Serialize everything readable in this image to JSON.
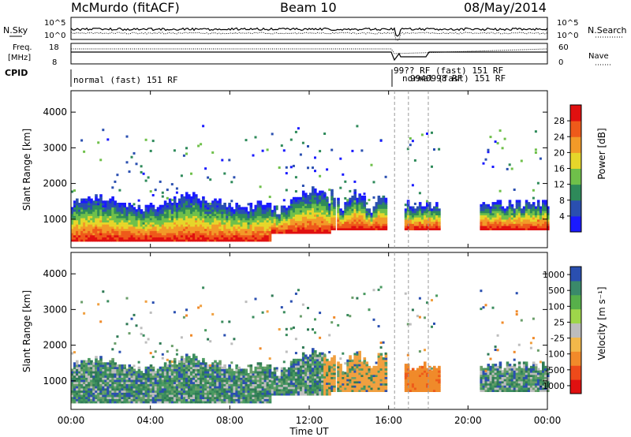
{
  "header": {
    "title": "McMurdo (fitACF)",
    "beam": "Beam 10",
    "date": "08/May/2014"
  },
  "top_panel": {
    "left_label_sky": "N.Sky",
    "left_ticks": [
      "10^5",
      "10^0"
    ],
    "right_label_search": "N.Search",
    "right_ticks": [
      "10^5",
      "10^0"
    ],
    "freq_label_1": "Freq.",
    "freq_label_2": "[MHz]",
    "freq_ticks": [
      "18",
      "8"
    ],
    "nave_label": "Nave",
    "nave_ticks": [
      "60",
      "0"
    ],
    "cpid_label": "CPID",
    "cpid_text": "normal (fast) 151 RF",
    "cpid_text_right": "99?? RF (fast) 151 RF",
    "cpid_overlap_1": "normal",
    "cpid_overlap_2": "9940998 RF",
    "cpid_overlap_3": "(fast) 151 RF"
  },
  "x_axis": {
    "label": "Time UT",
    "ticks": [
      "00:00",
      "04:00",
      "08:00",
      "12:00",
      "16:00",
      "20:00",
      "00:00"
    ]
  },
  "chart_data": [
    {
      "type": "heatmap",
      "panel": "power",
      "ylabel": "Slant Range [km]",
      "yticks": [
        1000,
        2000,
        3000,
        4000
      ],
      "ylim": [
        200,
        4600
      ],
      "xlim_hours": [
        0,
        24
      ],
      "colorbar_label": "Power [dB]",
      "colorbar_ticks": [
        4,
        8,
        12,
        16,
        20,
        24,
        28
      ],
      "colorbar_colors": [
        "#1a1aff",
        "#2a4fb0",
        "#2e8a5a",
        "#6fc04a",
        "#e6d62a",
        "#f29a28",
        "#ee5a1a",
        "#e01010"
      ]
    },
    {
      "type": "heatmap",
      "panel": "velocity",
      "ylabel": "Slant Range [km]",
      "yticks": [
        1000,
        2000,
        3000,
        4000
      ],
      "ylim": [
        200,
        4600
      ],
      "xlim_hours": [
        0,
        24
      ],
      "colorbar_label": "Velocity [m s⁻¹]",
      "colorbar_ticks": [
        "1000",
        "500",
        "100",
        "25",
        "-25",
        "-100",
        "-500",
        "-1000"
      ],
      "colorbar_colors": [
        "#2a4fb0",
        "#3a8a6a",
        "#57b04a",
        "#9ed64a",
        "#bdbdbd",
        "#f2b84a",
        "#f28a2a",
        "#ee4a1a",
        "#e01010"
      ]
    }
  ]
}
